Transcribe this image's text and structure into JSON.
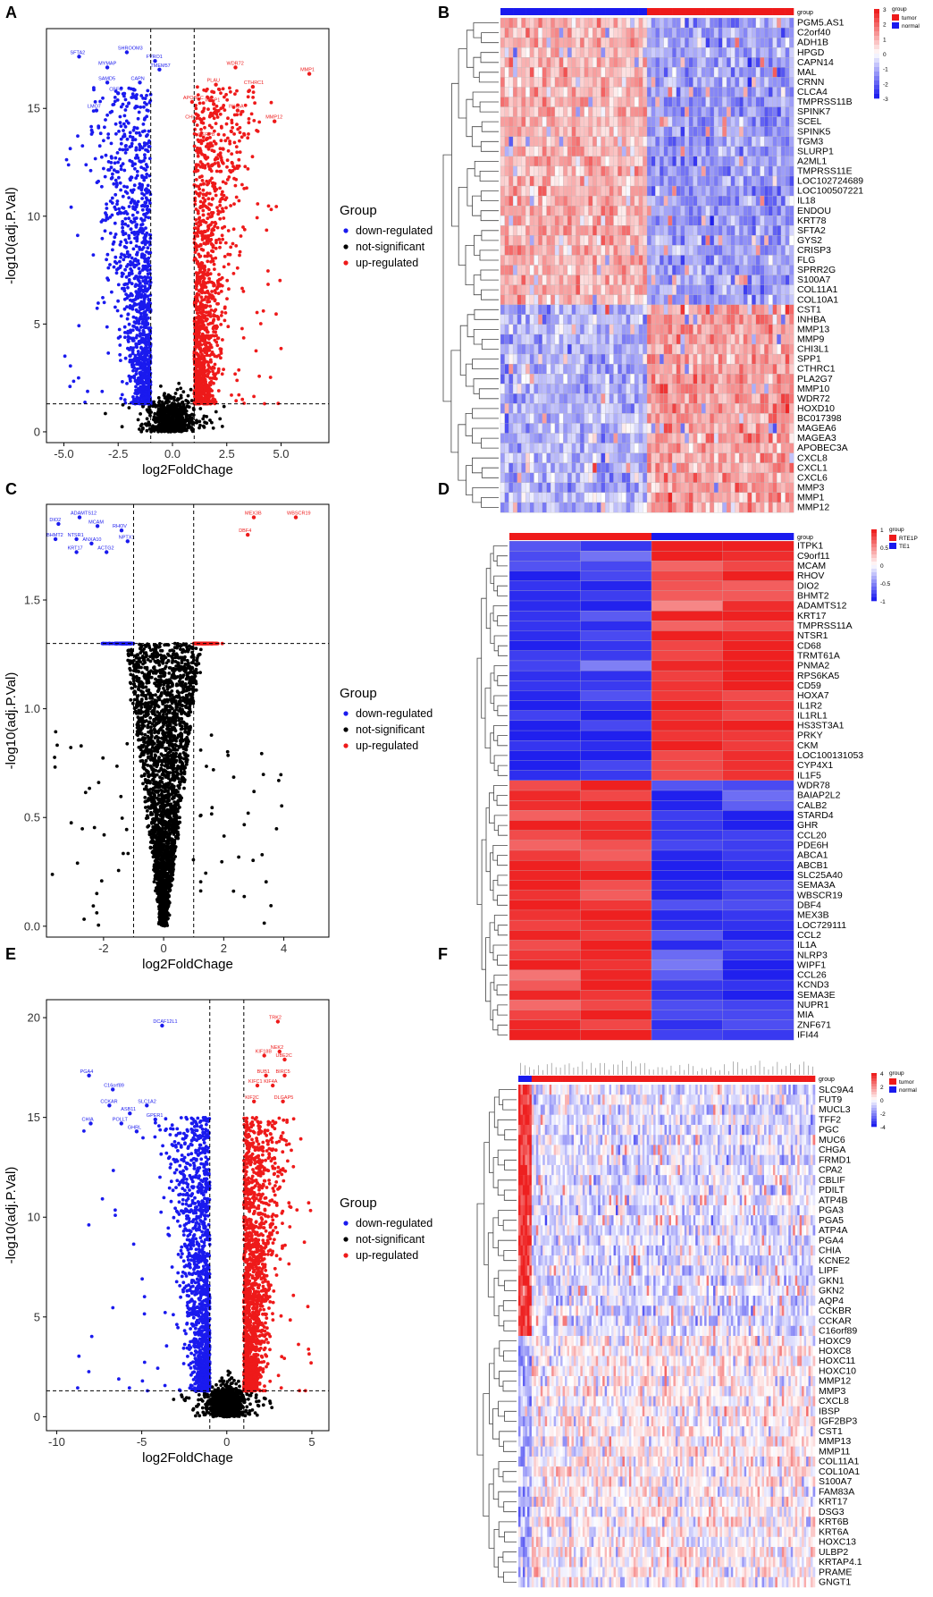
{
  "chart_data": [
    {
      "panel": "A",
      "type": "scatter",
      "title": "",
      "xlabel": "log2FoldChage",
      "ylabel": "-log10(adj.P.Val)",
      "xlim": [
        -5.8,
        7.2
      ],
      "ylim": [
        -0.5,
        18.7
      ],
      "xticks": [
        "-5.0",
        "-2.5",
        "0.0",
        "2.5",
        "5.0"
      ],
      "xtick_values": [
        -5,
        -2.5,
        0,
        2.5,
        5
      ],
      "yticks": [
        "0",
        "5",
        "10",
        "15"
      ],
      "ytick_values": [
        0,
        5,
        10,
        15
      ],
      "vlines": [
        -1,
        1
      ],
      "hline": 1.3,
      "legend_title": "Group",
      "legend": [
        {
          "label": "down-regulated",
          "color": "#1a1aee"
        },
        {
          "label": "not-significant",
          "color": "#000000"
        },
        {
          "label": "up-regulated",
          "color": "#ee1a1a"
        }
      ],
      "spread": {
        "down_n": 1200,
        "up_n": 1300,
        "ns_n": 700,
        "xmin": -5,
        "xmax": 5,
        "ymax": 16
      },
      "down_labels": [
        {
          "text": "SFTA2",
          "x": -4.3,
          "y": 17.4
        },
        {
          "text": "SHROOM3",
          "x": -2.1,
          "y": 17.6
        },
        {
          "text": "FVRO1",
          "x": -0.8,
          "y": 17.2
        },
        {
          "text": "MYMAP",
          "x": -3.0,
          "y": 16.9
        },
        {
          "text": "TMEM57",
          "x": -0.6,
          "y": 16.8
        },
        {
          "text": "SAMD5",
          "x": -3.0,
          "y": 16.2
        },
        {
          "text": "CAPN",
          "x": -1.5,
          "y": 16.2
        },
        {
          "text": "CBFC",
          "x": -2.5,
          "y": 15.7
        },
        {
          "text": "LMO7",
          "x": -3.5,
          "y": 14.9
        }
      ],
      "up_labels": [
        {
          "text": "WDR72",
          "x": 2.9,
          "y": 16.9
        },
        {
          "text": "MMP1",
          "x": 6.3,
          "y": 16.6
        },
        {
          "text": "PLAU",
          "x": 2.0,
          "y": 16.1
        },
        {
          "text": "CTHRC1",
          "x": 3.7,
          "y": 16.0
        },
        {
          "text": "APOBEC",
          "x": 0.9,
          "y": 15.3
        },
        {
          "text": "WISP1",
          "x": 1.9,
          "y": 15.2
        },
        {
          "text": "INHBA",
          "x": 3.0,
          "y": 14.9
        },
        {
          "text": "MMP12",
          "x": 4.7,
          "y": 14.4
        },
        {
          "text": "CHI",
          "x": 1.0,
          "y": 14.4
        },
        {
          "text": "SERPB",
          "x": 1.6,
          "y": 13.6
        }
      ]
    },
    {
      "panel": "B",
      "type": "heatmap",
      "title": "",
      "legend_title": "group",
      "legend": [
        {
          "label": "tumor",
          "color": "#ee1a1a"
        },
        {
          "label": "normal",
          "color": "#1a1aee"
        }
      ],
      "scale_ticks": [
        "3",
        "2",
        "1",
        "0",
        "-1",
        "-2",
        "-3"
      ],
      "group_split": [
        35,
        35
      ],
      "block_split": 29,
      "rows": [
        "PGM5.AS1",
        "C2orf40",
        "ADH1B",
        "HPGD",
        "CAPN14",
        "MAL",
        "CRNN",
        "CLCA4",
        "TMPRSS11B",
        "SPINK7",
        "SCEL",
        "SPINK5",
        "TGM3",
        "SLURP1",
        "A2ML1",
        "TMPRSS11E",
        "LOC102724689",
        "LOC100507221",
        "IL18",
        "ENDOU",
        "KRT78",
        "SFTA2",
        "GYS2",
        "CRISP3",
        "FLG",
        "SPRR2G",
        "S100A7",
        "COL11A1",
        "COL10A1",
        "CST1",
        "INHBA",
        "MMP13",
        "MMP9",
        "CHI3L1",
        "SPP1",
        "CTHRC1",
        "PLA2G7",
        "MMP10",
        "WDR72",
        "HOXD10",
        "BC017398",
        "MAGEA6",
        "MAGEA3",
        "APOBEC3A",
        "CXCL8",
        "CXCL1",
        "CXCL6",
        "MMP3",
        "MMP1",
        "MMP12"
      ]
    },
    {
      "panel": "C",
      "type": "scatter",
      "title": "",
      "xlabel": "log2FoldChage",
      "ylabel": "-log10(adj.P.Val)",
      "xlim": [
        -3.9,
        5.5
      ],
      "ylim": [
        -0.05,
        1.94
      ],
      "xticks": [
        "-2",
        "0",
        "2",
        "4"
      ],
      "xtick_values": [
        -2,
        0,
        2,
        4
      ],
      "yticks": [
        "0.0",
        "0.5",
        "1.0",
        "1.5"
      ],
      "ytick_values": [
        0,
        0.5,
        1,
        1.5
      ],
      "vlines": [
        -1,
        1
      ],
      "hline": 1.3,
      "legend_title": "Group",
      "legend": [
        {
          "label": "down-regulated",
          "color": "#1a1aee"
        },
        {
          "label": "not-significant",
          "color": "#000000"
        },
        {
          "label": "up-regulated",
          "color": "#ee1a1a"
        }
      ],
      "spread": {
        "down_n": 150,
        "up_n": 160,
        "ns_n": 2600,
        "xmin": -3,
        "xmax": 4.5,
        "ymax": 1.3
      },
      "down_labels": [
        {
          "text": "ADAMTS12",
          "x": -2.8,
          "y": 1.88
        },
        {
          "text": "DIO2",
          "x": -3.5,
          "y": 1.85
        },
        {
          "text": "MCAM",
          "x": -2.2,
          "y": 1.84
        },
        {
          "text": "RHOV",
          "x": -1.4,
          "y": 1.82
        },
        {
          "text": "BHMT2",
          "x": -3.6,
          "y": 1.78
        },
        {
          "text": "NTSR1",
          "x": -2.9,
          "y": 1.78
        },
        {
          "text": "NPTX1",
          "x": -1.2,
          "y": 1.77
        },
        {
          "text": "ANXA10",
          "x": -2.4,
          "y": 1.76
        },
        {
          "text": "KRT17",
          "x": -2.9,
          "y": 1.72
        },
        {
          "text": "ACTG2",
          "x": -1.9,
          "y": 1.72
        }
      ],
      "up_labels": [
        {
          "text": "MEX3B",
          "x": 3.0,
          "y": 1.88
        },
        {
          "text": "WBSCR19",
          "x": 4.4,
          "y": 1.88
        },
        {
          "text": "DBF4",
          "x": 2.8,
          "y": 1.8
        }
      ]
    },
    {
      "panel": "D",
      "type": "heatmap",
      "title": "",
      "legend_title": "group",
      "legend": [
        {
          "label": "RTE1P",
          "color": "#ee1a1a"
        },
        {
          "label": "TE1",
          "color": "#1a1aee"
        }
      ],
      "scale_ticks": [
        "1",
        "0.5",
        "0",
        "-0.5",
        "-1"
      ],
      "group_split": [
        2,
        2
      ],
      "block_split": 24,
      "rows": [
        "ITPK1",
        "C9orf11",
        "MCAM",
        "RHOV",
        "DIO2",
        "BHMT2",
        "ADAMTS12",
        "KRT17",
        "TMPRSS11A",
        "NTSR1",
        "CD68",
        "TRMT61A",
        "PNMA2",
        "RPS6KA5",
        "CD59",
        "HOXA7",
        "IL1R2",
        "IL1RL1",
        "HS3ST3A1",
        "PRKY",
        "CKM",
        "LOC100131053",
        "CYP4X1",
        "IL1F5",
        "WDR78",
        "BAIAP2L2",
        "CALB2",
        "STARD4",
        "GHR",
        "CCL20",
        "PDE6H",
        "ABCA1",
        "ABCB1",
        "SLC25A40",
        "SEMA3A",
        "WBSCR19",
        "DBF4",
        "MEX3B",
        "LOC729111",
        "CCL2",
        "IL1A",
        "NLRP3",
        "WIPF1",
        "CCL26",
        "KCND3",
        "SEMA3E",
        "NUPR1",
        "MIA",
        "ZNF671",
        "IFI44"
      ]
    },
    {
      "panel": "E",
      "type": "scatter",
      "title": "",
      "xlabel": "log2FoldChage",
      "ylabel": "-log10(adj.P.Val)",
      "xlim": [
        -10.6,
        6.0
      ],
      "ylim": [
        -0.7,
        20.9
      ],
      "xticks": [
        "-10",
        "-5",
        "0",
        "5"
      ],
      "xtick_values": [
        -10,
        -5,
        0,
        5
      ],
      "yticks": [
        "0",
        "5",
        "10",
        "15",
        "20"
      ],
      "ytick_values": [
        0,
        5,
        10,
        15,
        20
      ],
      "vlines": [
        -1,
        1
      ],
      "hline": 1.3,
      "legend_title": "Group",
      "legend": [
        {
          "label": "down-regulated",
          "color": "#1a1aee"
        },
        {
          "label": "not-significant",
          "color": "#000000"
        },
        {
          "label": "up-regulated",
          "color": "#ee1a1a"
        }
      ],
      "spread": {
        "down_n": 1400,
        "up_n": 1600,
        "ns_n": 900,
        "xmin": -9.5,
        "xmax": 5,
        "ymax": 15
      },
      "down_labels": [
        {
          "text": "DCAF12L1",
          "x": -3.8,
          "y": 19.6
        },
        {
          "text": "PGA4",
          "x": -8.1,
          "y": 17.1
        },
        {
          "text": "C16orf89",
          "x": -6.7,
          "y": 16.4
        },
        {
          "text": "CCKAR",
          "x": -6.9,
          "y": 15.6
        },
        {
          "text": "SLC1A2",
          "x": -4.7,
          "y": 15.6
        },
        {
          "text": "ASB11",
          "x": -5.7,
          "y": 15.2
        },
        {
          "text": "GPER1",
          "x": -4.2,
          "y": 14.9
        },
        {
          "text": "CHIA",
          "x": -8.0,
          "y": 14.7
        },
        {
          "text": "POLLT",
          "x": -6.2,
          "y": 14.7
        },
        {
          "text": "GHRL",
          "x": -5.3,
          "y": 14.3
        }
      ],
      "up_labels": [
        {
          "text": "TRK2",
          "x": 3.0,
          "y": 19.8
        },
        {
          "text": "NEK2",
          "x": 3.1,
          "y": 18.3
        },
        {
          "text": "KIF18B",
          "x": 2.2,
          "y": 18.1
        },
        {
          "text": "UBE2C",
          "x": 3.4,
          "y": 17.9
        },
        {
          "text": "BUB1",
          "x": 2.3,
          "y": 17.1
        },
        {
          "text": "BIRC5",
          "x": 3.4,
          "y": 17.1
        },
        {
          "text": "KIFC1",
          "x": 1.8,
          "y": 16.6
        },
        {
          "text": "KIF4A",
          "x": 2.7,
          "y": 16.6
        },
        {
          "text": "KIF2C",
          "x": 1.6,
          "y": 15.8
        },
        {
          "text": "DLGAP5",
          "x": 3.3,
          "y": 15.8
        }
      ]
    },
    {
      "panel": "F",
      "type": "heatmap",
      "title": "",
      "legend_title": "group",
      "legend": [
        {
          "label": "tumor",
          "color": "#ee1a1a"
        },
        {
          "label": "normal",
          "color": "#1a1aee"
        }
      ],
      "scale_ticks": [
        "4",
        "2",
        "0",
        "-2",
        "-4"
      ],
      "group_split": [
        6,
        128
      ],
      "block_split": 25,
      "rows": [
        "SLC9A4",
        "FUT9",
        "MUCL3",
        "TFF2",
        "PGC",
        "MUC6",
        "CHGA",
        "FRMD1",
        "CPA2",
        "CBLIF",
        "PDILT",
        "ATP4B",
        "PGA3",
        "PGA5",
        "ATP4A",
        "PGA4",
        "CHIA",
        "KCNE2",
        "LIPF",
        "GKN1",
        "GKN2",
        "AQP4",
        "CCKBR",
        "CCKAR",
        "C16orf89",
        "HOXC9",
        "HOXC8",
        "HOXC11",
        "HOXC10",
        "MMP12",
        "MMP3",
        "CXCL8",
        "IBSP",
        "IGF2BP3",
        "CST1",
        "MMP13",
        "MMP11",
        "COL11A1",
        "COL10A1",
        "S100A7",
        "FAM83A",
        "KRT17",
        "DSG3",
        "KRT6B",
        "KRT6A",
        "HOXC13",
        "ULBP2",
        "KRTAP4.1",
        "PRAME",
        "GNGT1"
      ]
    }
  ],
  "panel_letters": [
    "A",
    "B",
    "C",
    "D",
    "E",
    "F"
  ],
  "colors": {
    "down": "#1a1aee",
    "up": "#ee1a1a",
    "ns": "#000000",
    "hm_hi": "#ee1a1a",
    "hm_lo": "#2020ee",
    "hm_mid": "#ffffff"
  }
}
